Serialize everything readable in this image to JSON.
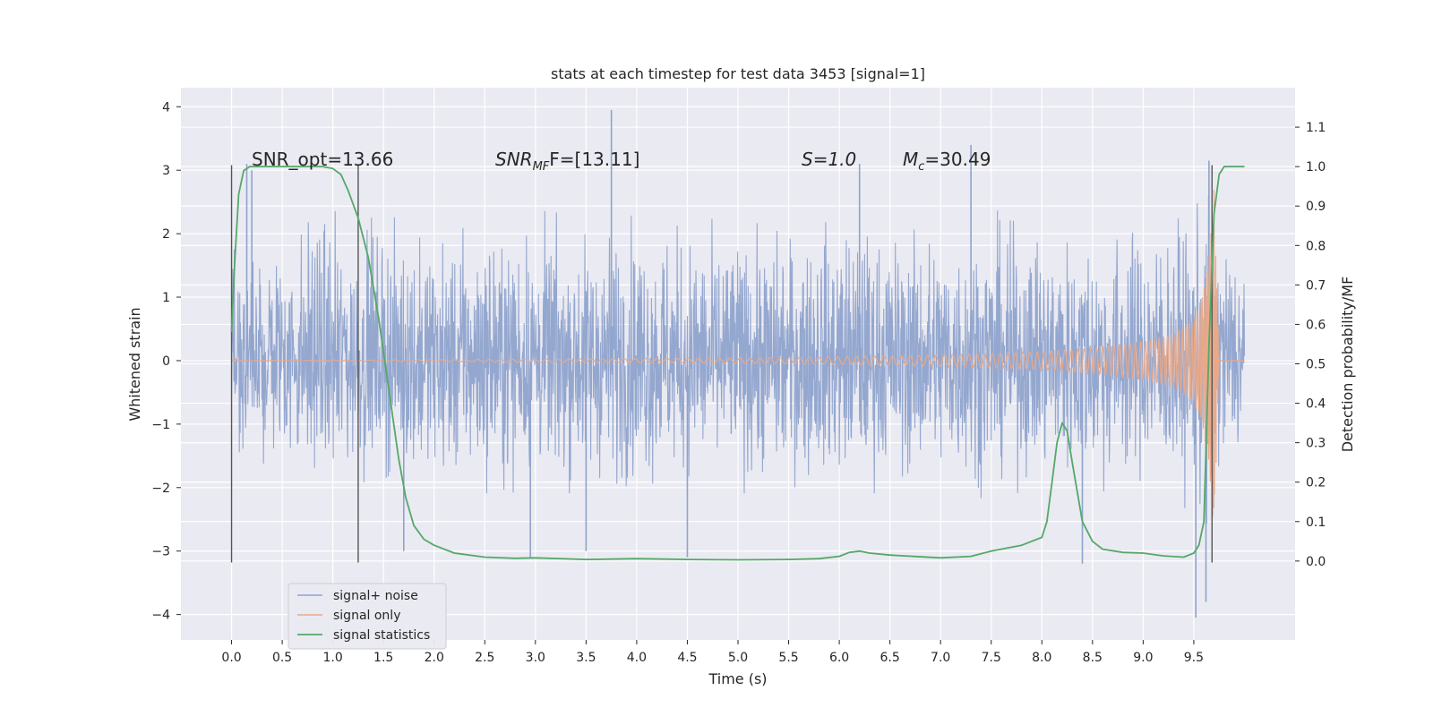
{
  "chart_data": {
    "type": "line",
    "title": "stats at each timestep for test data 3453 [signal=1]",
    "xlabel": "Time (s)",
    "ylabel": "Whitened strain",
    "ylabel_right": "Detection probability/MF",
    "xlim": [
      -0.5,
      10.5
    ],
    "ylim": [
      -4.4,
      4.3
    ],
    "ylim_right": [
      -0.2,
      1.2
    ],
    "x_ticks": [
      "0.0",
      "0.5",
      "1.0",
      "1.5",
      "2.0",
      "2.5",
      "3.0",
      "3.5",
      "4.0",
      "4.5",
      "5.0",
      "5.5",
      "6.0",
      "6.5",
      "7.0",
      "7.5",
      "8.0",
      "8.5",
      "9.0",
      "9.5"
    ],
    "y_ticks": [
      "4",
      "3",
      "2",
      "1",
      "0",
      "−1",
      "−2",
      "−3",
      "−4"
    ],
    "y_ticks_right": [
      "1.1",
      "1.0",
      "0.9",
      "0.8",
      "0.7",
      "0.6",
      "0.5",
      "0.4",
      "0.3",
      "0.2",
      "0.1",
      "0.0"
    ],
    "grid": true,
    "legend": {
      "placement": "lower-left",
      "entries": [
        {
          "name": "signal+ noise",
          "color": "#8fa3cc"
        },
        {
          "name": "signal only",
          "color": "#e8a98a"
        },
        {
          "name": "signal statistics",
          "color": "#55a868"
        }
      ]
    },
    "annotations": {
      "snr_opt": "SNR_opt=13.66",
      "snr_mf_base": "SNR",
      "snr_mf_sub": "MF",
      "snr_mf_rest": "F=[13.11]",
      "s_value": "S=1.0",
      "mc_base": "M",
      "mc_sub": "c",
      "mc_rest": "=30.49"
    },
    "vertical_lines": [
      0.0,
      1.25,
      9.68
    ],
    "noise_envelope": {
      "x": [
        0.0,
        0.1,
        0.2,
        0.5,
        1.0,
        1.5,
        2.0,
        2.5,
        3.0,
        3.5,
        4.0,
        4.5,
        5.0,
        5.5,
        6.0,
        6.5,
        7.0,
        7.5,
        8.0,
        8.5,
        9.0,
        9.5,
        9.6,
        9.65,
        9.7,
        9.8,
        9.9,
        10.0
      ],
      "upper": [
        1.8,
        2.5,
        2.8,
        2.5,
        2.6,
        2.4,
        2.3,
        2.4,
        2.5,
        2.4,
        2.6,
        2.4,
        2.3,
        2.4,
        2.6,
        2.4,
        2.5,
        2.5,
        2.4,
        2.4,
        2.5,
        2.6,
        2.8,
        3.1,
        2.6,
        2.5,
        2.4,
        2.3
      ],
      "lower": [
        -1.2,
        -2.0,
        -2.2,
        -2.0,
        -2.1,
        -2.0,
        -2.2,
        -2.2,
        -2.2,
        -2.2,
        -2.3,
        -2.1,
        -2.2,
        -2.2,
        -2.2,
        -2.2,
        -2.2,
        -2.3,
        -2.1,
        -2.3,
        -2.2,
        -2.5,
        -3.0,
        -3.5,
        -2.2,
        -2.0,
        -1.9,
        -1.9
      ],
      "spikes": [
        [
          0.15,
          3.1
        ],
        [
          0.2,
          3.0
        ],
        [
          1.7,
          -3.0
        ],
        [
          2.95,
          -3.1
        ],
        [
          3.75,
          3.95
        ],
        [
          3.5,
          -3.0
        ],
        [
          4.5,
          -3.1
        ],
        [
          6.2,
          3.1
        ],
        [
          7.3,
          3.4
        ],
        [
          8.4,
          -3.2
        ],
        [
          9.52,
          -4.05
        ],
        [
          9.62,
          -3.8
        ],
        [
          9.65,
          3.15
        ]
      ]
    },
    "signal_only": {
      "x": [
        0.0,
        5.0,
        6.0,
        7.0,
        8.0,
        8.5,
        9.0,
        9.3,
        9.5,
        9.6,
        9.65,
        9.7,
        9.75,
        10.0
      ],
      "amplitude": [
        0.0,
        0.04,
        0.06,
        0.09,
        0.14,
        0.2,
        0.3,
        0.42,
        0.65,
        1.1,
        1.8,
        2.7,
        0.0,
        0.0
      ]
    },
    "signal_statistics": {
      "x": [
        0.0,
        0.03,
        0.07,
        0.12,
        0.18,
        0.25,
        0.35,
        0.5,
        0.7,
        0.9,
        1.0,
        1.08,
        1.15,
        1.25,
        1.35,
        1.45,
        1.55,
        1.65,
        1.72,
        1.8,
        1.9,
        2.0,
        2.2,
        2.5,
        2.8,
        3.0,
        3.5,
        4.0,
        4.5,
        5.0,
        5.5,
        5.8,
        6.0,
        6.1,
        6.2,
        6.3,
        6.5,
        7.0,
        7.3,
        7.5,
        7.8,
        8.0,
        8.05,
        8.1,
        8.15,
        8.2,
        8.25,
        8.3,
        8.4,
        8.5,
        8.6,
        8.8,
        9.0,
        9.2,
        9.4,
        9.5,
        9.55,
        9.6,
        9.65,
        9.7,
        9.75,
        9.8,
        9.9,
        10.0
      ],
      "values": [
        0.58,
        0.75,
        0.93,
        0.99,
        1.0,
        1.0,
        1.0,
        1.0,
        1.0,
        1.0,
        0.995,
        0.98,
        0.94,
        0.87,
        0.77,
        0.62,
        0.44,
        0.26,
        0.16,
        0.09,
        0.055,
        0.04,
        0.02,
        0.01,
        0.007,
        0.008,
        0.004,
        0.006,
        0.004,
        0.003,
        0.004,
        0.006,
        0.012,
        0.022,
        0.025,
        0.02,
        0.015,
        0.008,
        0.012,
        0.025,
        0.04,
        0.06,
        0.1,
        0.2,
        0.3,
        0.35,
        0.33,
        0.25,
        0.1,
        0.05,
        0.03,
        0.022,
        0.02,
        0.013,
        0.01,
        0.02,
        0.04,
        0.1,
        0.55,
        0.88,
        0.98,
        1.0,
        1.0,
        1.0
      ]
    }
  }
}
